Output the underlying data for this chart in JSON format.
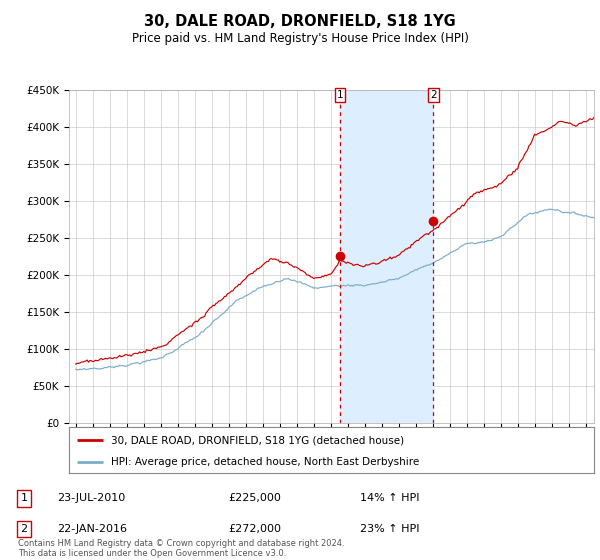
{
  "title": "30, DALE ROAD, DRONFIELD, S18 1YG",
  "subtitle": "Price paid vs. HM Land Registry's House Price Index (HPI)",
  "hpi_label": "HPI: Average price, detached house, North East Derbyshire",
  "price_label": "30, DALE ROAD, DRONFIELD, S18 1YG (detached house)",
  "footer": "Contains HM Land Registry data © Crown copyright and database right 2024.\nThis data is licensed under the Open Government Licence v3.0.",
  "transaction1_date": "23-JUL-2010",
  "transaction1_price": 225000,
  "transaction1_hpi_pct": "14%",
  "transaction2_date": "22-JAN-2016",
  "transaction2_price": 272000,
  "transaction2_hpi_pct": "23%",
  "red_line_color": "#cc0000",
  "blue_line_color": "#7aadcc",
  "shade_color": "#ddeeff",
  "marker_color": "#cc0000",
  "vline_color": "#cc0000",
  "annotation_box_color": "#cc0000",
  "ylim": [
    0,
    450000
  ],
  "yticks": [
    0,
    50000,
    100000,
    150000,
    200000,
    250000,
    300000,
    350000,
    400000,
    450000
  ],
  "xlim_start": 1994.6,
  "xlim_end": 2025.5,
  "background_color": "#ffffff",
  "grid_color": "#cccccc",
  "transaction1_x": 2010.55,
  "transaction2_x": 2016.05
}
